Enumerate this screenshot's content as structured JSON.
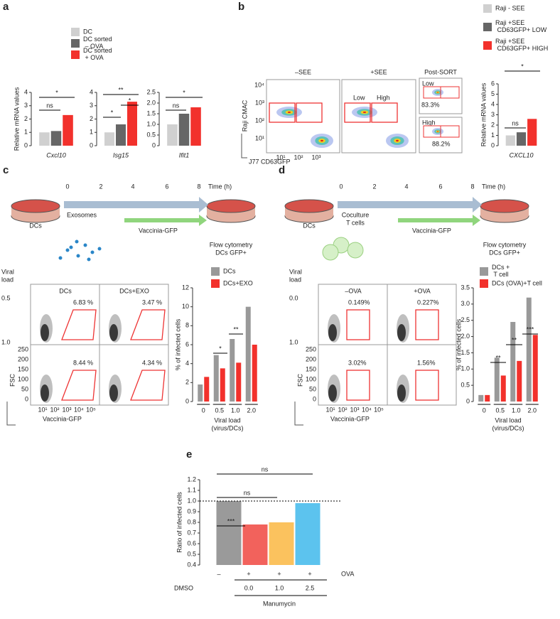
{
  "chart_data": [
    {
      "type": "bar",
      "ylabel": "Relative mRNA values",
      "xlabel": "Cxcl10",
      "categories": [
        null
      ],
      "ylim": [
        0,
        4
      ],
      "yticks": [
        0,
        1,
        2,
        3,
        4
      ],
      "series": [
        {
          "name": "DC",
          "color": "#d0d0d0",
          "values": [
            1.0
          ]
        },
        {
          "name": "DC sorted – OVA",
          "color": "#666666",
          "values": [
            1.1
          ]
        },
        {
          "name": "DC sorted + OVA",
          "color": "#f2312c",
          "values": [
            2.3
          ]
        }
      ],
      "annotations": [
        "ns",
        "*"
      ]
    },
    {
      "type": "bar",
      "xlabel": "Isg15",
      "categories": [
        null
      ],
      "ylim": [
        0,
        4
      ],
      "yticks": [
        0,
        1,
        2,
        3,
        4
      ],
      "series": [
        {
          "color": "#d0d0d0",
          "values": [
            1.0
          ]
        },
        {
          "color": "#666666",
          "values": [
            1.6
          ]
        },
        {
          "color": "#f2312c",
          "values": [
            3.3
          ]
        }
      ],
      "annotations": [
        "*",
        "*",
        "**"
      ]
    },
    {
      "type": "bar",
      "xlabel": "Ifit1",
      "categories": [
        null
      ],
      "ylim": [
        0,
        2.5
      ],
      "yticks": [
        0,
        0.5,
        {
          "value": 1,
          "label": "1.0"
        },
        1.5,
        {
          "value": 2,
          "label": "2.0"
        },
        2.5
      ],
      "series": [
        {
          "color": "#d0d0d0",
          "values": [
            1.0
          ]
        },
        {
          "color": "#666666",
          "values": [
            1.5
          ]
        },
        {
          "color": "#f2312c",
          "values": [
            1.8
          ]
        }
      ],
      "annotations": [
        "ns",
        "*"
      ]
    },
    {
      "type": "bar",
      "ylabel": "Relative mRNA values",
      "xlabel": "CXCL10",
      "categories": [
        null
      ],
      "ylim": [
        0,
        6
      ],
      "yticks": [
        0,
        1,
        2,
        3,
        4,
        5,
        6
      ],
      "series": [
        {
          "name": "Raji - SEE",
          "color": "#d0d0d0",
          "values": [
            1.0
          ]
        },
        {
          "name": "Raji +SEE CD63GFP+ LOW",
          "color": "#666666",
          "values": [
            1.3
          ]
        },
        {
          "name": "Raji +SEE CD63GFP+ HIGH",
          "color": "#f2312c",
          "values": [
            2.6
          ]
        }
      ],
      "annotations": [
        "ns",
        "*"
      ]
    },
    {
      "type": "bar",
      "ylabel": "% of infected cells",
      "xlabel": [
        "Viral load",
        "(virus/DCs)"
      ],
      "categories": [
        "0",
        "0.5",
        "1.0",
        "2.0"
      ],
      "ylim": [
        0,
        12
      ],
      "yticks": [
        0,
        2,
        4,
        6,
        8,
        10,
        12
      ],
      "series": [
        {
          "name": "DCs",
          "color": "#999999",
          "values": [
            1.8,
            4.9,
            6.6,
            10.0
          ]
        },
        {
          "name": "DCs+EXO",
          "color": "#f2312c",
          "values": [
            2.6,
            3.5,
            4.1,
            6.0
          ]
        }
      ],
      "annotations": [
        "*",
        "**"
      ]
    },
    {
      "type": "bar",
      "ylabel": "% of infected cells",
      "xlabel": [
        "Viral load",
        "(virus/DCs)"
      ],
      "categories": [
        "0",
        "0.5",
        "1.0",
        "2.0"
      ],
      "ylim": [
        0,
        3.5
      ],
      "yticks": [
        0,
        0.5,
        {
          "value": 1,
          "label": "1.0"
        },
        1.5,
        {
          "value": 2,
          "label": "2.0"
        },
        2.5,
        {
          "value": 3,
          "label": "3.0"
        },
        3.5
      ],
      "series": [
        {
          "name": "DCs + T cell",
          "color": "#999999",
          "values": [
            0.2,
            1.35,
            2.45,
            3.2
          ]
        },
        {
          "name": "DCs (OVA)+T cell",
          "color": "#f2312c",
          "values": [
            0.2,
            0.8,
            1.25,
            2.05
          ]
        }
      ],
      "annotations": [
        "**",
        "**",
        "***"
      ]
    },
    {
      "type": "bar",
      "ylabel": "Ratio of infected cells",
      "categories": [
        null
      ],
      "ylim": [
        0.4,
        1.2
      ],
      "yticks": [
        0.4,
        0.5,
        0.6,
        0.7,
        0.8,
        0.9,
        {
          "value": 1,
          "label": "1.0"
        },
        1.1,
        1.2
      ],
      "series": [
        {
          "color": "#9a9a9a",
          "values": [
            1.0
          ]
        },
        {
          "color": "#f2625c",
          "values": [
            0.78
          ]
        },
        {
          "color": "#fbc25e",
          "values": [
            0.8
          ]
        },
        {
          "color": "#5cc3ee",
          "values": [
            0.98
          ]
        }
      ],
      "reference_line": 1.0,
      "annotations": [
        "***",
        "ns",
        "ns"
      ]
    }
  ],
  "figure": {
    "panel_labels": [
      "a",
      "b",
      "c",
      "d",
      "e"
    ],
    "b": {
      "flow_titles": [
        "–SEE",
        "+SEE"
      ],
      "gates": [
        "Low",
        "High"
      ],
      "post_sort": "Post-SORT",
      "post_labels": [
        "Low",
        "High"
      ],
      "percents": [
        "83.3%",
        "88.2%"
      ],
      "ylabel": "Raji CMAC",
      "xlabel": "J77 CD63GFP",
      "yticks": [
        "10⁴",
        "10³",
        "10²",
        "10¹"
      ],
      "xticks": [
        "10¹",
        "10²",
        "10³"
      ]
    },
    "c": {
      "times": [
        "0",
        "2",
        "4",
        "6",
        "8"
      ],
      "time_label": "Time (h)",
      "treatment": [
        "Exosomes"
      ],
      "dcs": "DCs",
      "virus": "Vaccinia-GFP",
      "readout": [
        "Flow cytometry",
        "DCs GFP+"
      ],
      "viral_load": [
        "Viral",
        "load"
      ],
      "loads": [
        "0.5",
        "1.0"
      ],
      "cols": [
        "DCs",
        "DCs+EXO"
      ],
      "percents": [
        "6.83 %",
        "3.47 %",
        "8.44 %",
        "4.34 %"
      ],
      "ylabel": "FSC",
      "xlabel": "Vaccinia-GFP",
      "yticks": [
        "250",
        "200",
        "150",
        "100",
        "50",
        "0"
      ],
      "xticks": [
        "10¹",
        "10²",
        "10³",
        "10⁴",
        "10⁵"
      ]
    },
    "d": {
      "times": [
        "0",
        "2",
        "4",
        "6",
        "8"
      ],
      "time_label": "Time (h)",
      "treatment": [
        "Coculture",
        "T cells"
      ],
      "dcs": "DCs",
      "virus": "Vaccinia-GFP",
      "readout": [
        "Flow cytometry",
        "DCs GFP+"
      ],
      "viral_load": [
        "Viral",
        "load"
      ],
      "loads": [
        "0.0",
        "1.0"
      ],
      "cols": [
        "–OVA",
        "+OVA"
      ],
      "percents": [
        "0.149%",
        "0.227%",
        "3.02%",
        "1.56%"
      ],
      "ylabel": "FSC",
      "xlabel": "Vaccinia-GFP",
      "yticks": [
        "250",
        "200",
        "150",
        "100",
        "50",
        "0"
      ],
      "xticks": [
        "10¹",
        "10²",
        "10³",
        "10⁴",
        "10⁵"
      ]
    },
    "e": {
      "ova_label": "OVA",
      "ova": [
        "–",
        "+",
        "+",
        "+"
      ],
      "dmso": "DMSO",
      "doses": [
        "0.0",
        "1.0",
        "2.5"
      ],
      "drug": "Manumycin"
    }
  }
}
